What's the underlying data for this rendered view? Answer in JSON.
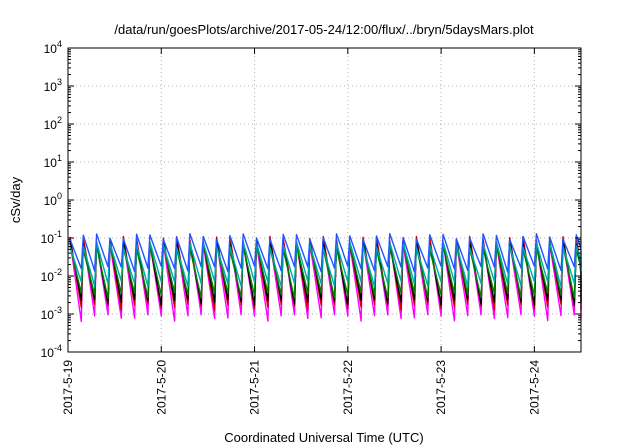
{
  "chart_data": {
    "type": "line",
    "title": "/data/run/goesPlots/archive/2017-05-24/12:00/flux/../bryn/5daysMars.plot",
    "xlabel": "Coordinated Universal Time (UTC)",
    "ylabel": "cSv/day",
    "y_scale": "log",
    "ylim": [
      0.0001,
      10000
    ],
    "xlim": [
      "2017-05-19 00:00",
      "2017-05-24 12:00"
    ],
    "grid": true,
    "legend": "none",
    "x_ticks": [
      "2017-5-19",
      "2017-5-20",
      "2017-5-21",
      "2017-5-22",
      "2017-5-23",
      "2017-5-24"
    ],
    "y_ticks": [
      {
        "base": "10",
        "exp": "-4"
      },
      {
        "base": "10",
        "exp": "-3"
      },
      {
        "base": "10",
        "exp": "-2"
      },
      {
        "base": "10",
        "exp": "-1"
      },
      {
        "base": "10",
        "exp": "0"
      },
      {
        "base": "10",
        "exp": "1"
      },
      {
        "base": "10",
        "exp": "2"
      },
      {
        "base": "10",
        "exp": "3"
      },
      {
        "base": "10",
        "exp": "4"
      }
    ],
    "cycles_per_day": 7,
    "series": [
      {
        "color": "#ff00ff",
        "peak": 0.1,
        "trough": 0.0008
      },
      {
        "color": "#cc0000",
        "peak": 0.11,
        "trough": 0.0015
      },
      {
        "color": "#000000",
        "peak": 0.09,
        "trough": 0.002
      },
      {
        "color": "#008000",
        "peak": 0.07,
        "trough": 0.003
      },
      {
        "color": "#00aaaa",
        "peak": 0.08,
        "trough": 0.006
      },
      {
        "color": "#2255ff",
        "peak": 0.13,
        "trough": 0.015
      }
    ]
  }
}
